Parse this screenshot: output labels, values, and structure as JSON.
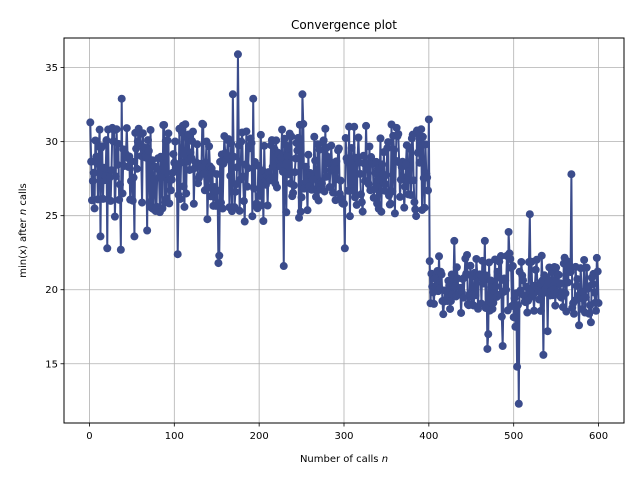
{
  "chart_data": {
    "type": "line",
    "title": "Convergence plot",
    "xlabel_pre": "Number of calls ",
    "xlabel_var": "n",
    "ylabel_pre": "min(x) after ",
    "ylabel_var": "n",
    "ylabel_post": " calls",
    "xlim": [
      -30,
      630
    ],
    "ylim": [
      11,
      37
    ],
    "xticks": [
      0,
      100,
      200,
      300,
      400,
      500,
      600
    ],
    "yticks": [
      15,
      20,
      25,
      30,
      35
    ],
    "xtick_labels": [
      "0",
      "100",
      "200",
      "300",
      "400",
      "500",
      "600"
    ],
    "ytick_labels": [
      "15",
      "20",
      "25",
      "30",
      "35"
    ],
    "grid": true,
    "series_color": "#3b4c8c",
    "series": [
      {
        "x_start": 1,
        "x_step": 1,
        "segments": [
          {
            "n": 400,
            "low": 24.5,
            "high": 31.5
          },
          {
            "n": 200,
            "low": 18.0,
            "high": 22.5
          }
        ],
        "extreme_points": [
          [
            1,
            31.3
          ],
          [
            10,
            26.1
          ],
          [
            13,
            23.6
          ],
          [
            21,
            22.8
          ],
          [
            25,
            26.0
          ],
          [
            37,
            22.7
          ],
          [
            38,
            32.9
          ],
          [
            53,
            23.6
          ],
          [
            68,
            24.0
          ],
          [
            104,
            22.4
          ],
          [
            152,
            21.8
          ],
          [
            153,
            22.3
          ],
          [
            169,
            33.2
          ],
          [
            175,
            35.9
          ],
          [
            193,
            32.9
          ],
          [
            229,
            21.6
          ],
          [
            251,
            33.2
          ],
          [
            301,
            22.8
          ],
          [
            400,
            31.5
          ],
          [
            418,
            19.2
          ],
          [
            425,
            18.7
          ],
          [
            430,
            23.3
          ],
          [
            466,
            23.3
          ],
          [
            469,
            16.0
          ],
          [
            470,
            17.0
          ],
          [
            487,
            16.2
          ],
          [
            494,
            23.9
          ],
          [
            502,
            17.5
          ],
          [
            504,
            14.8
          ],
          [
            506,
            12.3
          ],
          [
            519,
            25.1
          ],
          [
            535,
            15.6
          ],
          [
            540,
            17.2
          ],
          [
            568,
            27.8
          ],
          [
            577,
            17.6
          ],
          [
            591,
            17.8
          ],
          [
            600,
            19.1
          ]
        ]
      }
    ]
  }
}
